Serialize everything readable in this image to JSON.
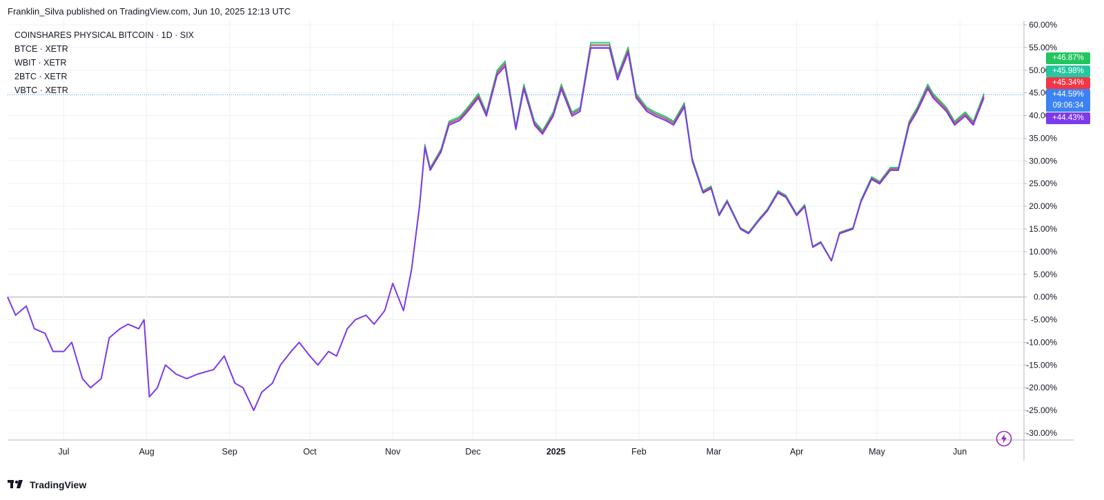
{
  "header": {
    "published": "Franklin_Silva published on TradingView.com, Jun 10, 2025 12:13 UTC"
  },
  "footer": {
    "brand": "TradingView"
  },
  "legend": {
    "main": "COINSHARES PHYSICAL BITCOIN · 1D · SIX",
    "items": [
      "BTCE · XETR",
      "WBIT · XETR",
      "2BTC · XETR",
      "VBTC · XETR"
    ]
  },
  "tags": [
    {
      "label": "+46.87%",
      "color": "#22c55e",
      "value": 46.87
    },
    {
      "label": "+45.98%",
      "color": "#26c6a0",
      "value": 45.98
    },
    {
      "label": "+45.34%",
      "color": "#f23645",
      "value": 45.34
    },
    {
      "label": "+44.59%",
      "sub": "09:06:34",
      "color": "#3b82f6",
      "value": 44.59
    },
    {
      "label": "+44.43%",
      "color": "#7c3aed",
      "value": 44.43
    }
  ],
  "chart_data": {
    "type": "line",
    "title": "COINSHARES PHYSICAL BITCOIN · 1D · SIX",
    "xlabel": "",
    "ylabel": "",
    "x_ticks": [
      "Jul",
      "Aug",
      "Sep",
      "Oct",
      "Nov",
      "Dec",
      "2025",
      "Feb",
      "Mar",
      "Apr",
      "May",
      "Jun"
    ],
    "y_ticks": [
      "60.00%",
      "55.00%",
      "50.00%",
      "45.00%",
      "40.00%",
      "35.00%",
      "30.00%",
      "25.00%",
      "20.00%",
      "15.00%",
      "10.00%",
      "5.00%",
      "0.00%",
      "-5.00%",
      "-10.00%",
      "-15.00%",
      "-20.00%",
      "-25.00%",
      "-30.00%"
    ],
    "ylim": [
      -30,
      60
    ],
    "grid": true,
    "base_series": {
      "name": "COINSHARES PHYSICAL BITCOIN",
      "x": [
        "2024-06-10",
        "2024-06-13",
        "2024-06-17",
        "2024-06-20",
        "2024-06-24",
        "2024-06-27",
        "2024-07-01",
        "2024-07-04",
        "2024-07-08",
        "2024-07-11",
        "2024-07-15",
        "2024-07-18",
        "2024-07-22",
        "2024-07-25",
        "2024-07-29",
        "2024-07-31",
        "2024-08-02",
        "2024-08-05",
        "2024-08-08",
        "2024-08-12",
        "2024-08-16",
        "2024-08-20",
        "2024-08-26",
        "2024-08-30",
        "2024-09-03",
        "2024-09-06",
        "2024-09-10",
        "2024-09-13",
        "2024-09-17",
        "2024-09-20",
        "2024-09-24",
        "2024-09-27",
        "2024-10-01",
        "2024-10-04",
        "2024-10-08",
        "2024-10-11",
        "2024-10-15",
        "2024-10-18",
        "2024-10-22",
        "2024-10-25",
        "2024-10-29",
        "2024-11-01",
        "2024-11-05",
        "2024-11-08",
        "2024-11-11",
        "2024-11-13",
        "2024-11-15",
        "2024-11-19",
        "2024-11-22",
        "2024-11-26",
        "2024-11-29",
        "2024-12-03",
        "2024-12-06",
        "2024-12-10",
        "2024-12-13",
        "2024-12-17",
        "2024-12-20",
        "2024-12-24",
        "2024-12-27",
        "2024-12-31",
        "2025-01-03",
        "2025-01-07",
        "2025-01-10",
        "2025-01-14",
        "2025-01-17",
        "2025-01-21",
        "2025-01-24",
        "2025-01-28",
        "2025-01-31",
        "2025-02-04",
        "2025-02-07",
        "2025-02-11",
        "2025-02-14",
        "2025-02-18",
        "2025-02-21",
        "2025-02-25",
        "2025-02-28",
        "2025-03-03",
        "2025-03-06",
        "2025-03-11",
        "2025-03-14",
        "2025-03-18",
        "2025-03-21",
        "2025-03-25",
        "2025-03-28",
        "2025-04-01",
        "2025-04-04",
        "2025-04-07",
        "2025-04-10",
        "2025-04-14",
        "2025-04-17",
        "2025-04-22",
        "2025-04-25",
        "2025-04-29",
        "2025-05-02",
        "2025-05-06",
        "2025-05-09",
        "2025-05-13",
        "2025-05-16",
        "2025-05-20",
        "2025-05-22",
        "2025-05-27",
        "2025-05-30",
        "2025-06-03",
        "2025-06-06",
        "2025-06-10"
      ],
      "values": [
        0,
        -4,
        -2,
        -7,
        -8,
        -12,
        -12,
        -10,
        -18,
        -20,
        -18,
        -9,
        -7,
        -6,
        -7,
        -5,
        -22,
        -20,
        -15,
        -17,
        -18,
        -17,
        -16,
        -13,
        -19,
        -20,
        -25,
        -21,
        -19,
        -15,
        -12,
        -10,
        -13,
        -15,
        -12,
        -13,
        -7,
        -5,
        -4,
        -6,
        -3,
        3,
        -3,
        6,
        20,
        33,
        28,
        32,
        38,
        39,
        41,
        44,
        40,
        49,
        51,
        37,
        46,
        38,
        36,
        40,
        46,
        40,
        41,
        55,
        55,
        55,
        48,
        54,
        44,
        41,
        40,
        39,
        38,
        42,
        30,
        23,
        24,
        18,
        21,
        15,
        14,
        17,
        19,
        23,
        22,
        18,
        20,
        11,
        12,
        8,
        14,
        15,
        21,
        26,
        25,
        28,
        28,
        38,
        41,
        46,
        44,
        41,
        38,
        40,
        38,
        44
      ],
      "offsets": [
        0.9,
        0.6,
        0.35,
        0,
        -0.1
      ],
      "colors": [
        "#22c55e",
        "#26c6a0",
        "#f23645",
        "#3b82f6",
        "#7c3aed"
      ]
    }
  }
}
